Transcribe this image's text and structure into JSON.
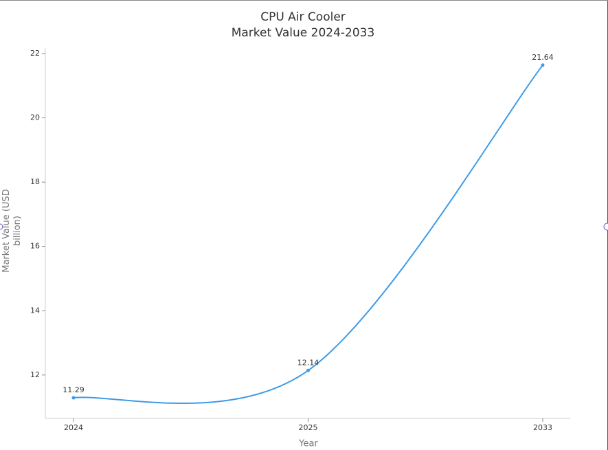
{
  "chart_data": {
    "type": "line",
    "title": "CPU Air Cooler",
    "subtitle": "Market Value 2024-2033",
    "x_label": "Year",
    "y_label": "Market Value (USD billion)",
    "categories": [
      "2024",
      "2025",
      "2033"
    ],
    "values": [
      11.29,
      12.14,
      21.64
    ],
    "color": "#3d9be9",
    "ylim": [
      10.65,
      22.17
    ],
    "yticks": [
      12,
      14,
      16,
      18,
      20,
      22
    ],
    "smooth": true,
    "value_labels_shown": true
  }
}
